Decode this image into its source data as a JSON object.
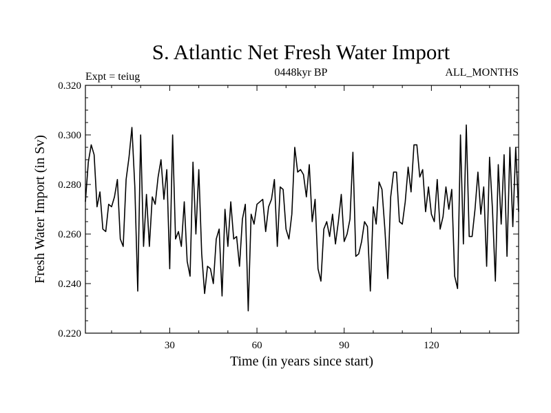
{
  "chart_data": {
    "type": "line",
    "title": "S. Atlantic Net Fresh Water Import",
    "subtitle_left": "Expt = teiug",
    "subtitle_center": "0448kyr BP",
    "subtitle_right": "ALL_MONTHS",
    "xlabel": "Time (in years since start)",
    "ylabel": "Fresh Water Import (in Sv)",
    "xlim": [
      1,
      150
    ],
    "ylim": [
      0.22,
      0.32
    ],
    "xticks": [
      30,
      60,
      90,
      120
    ],
    "xtick_labels": [
      "30",
      "60",
      "90",
      "120"
    ],
    "yticks": [
      0.22,
      0.24,
      0.26,
      0.28,
      0.3,
      0.32
    ],
    "ytick_labels": [
      "0.220",
      "0.240",
      "0.260",
      "0.280",
      "0.300",
      "0.320"
    ],
    "grid": false,
    "series": [
      {
        "name": "Fresh Water Import",
        "color": "#000000",
        "x": [
          1,
          2,
          3,
          4,
          5,
          6,
          7,
          8,
          9,
          10,
          11,
          12,
          13,
          14,
          15,
          16,
          17,
          18,
          19,
          20,
          21,
          22,
          23,
          24,
          25,
          26,
          27,
          28,
          29,
          30,
          31,
          32,
          33,
          34,
          35,
          36,
          37,
          38,
          39,
          40,
          41,
          42,
          43,
          44,
          45,
          46,
          47,
          48,
          49,
          50,
          51,
          52,
          53,
          54,
          55,
          56,
          57,
          58,
          59,
          60,
          61,
          62,
          63,
          64,
          65,
          66,
          67,
          68,
          69,
          70,
          71,
          72,
          73,
          74,
          75,
          76,
          77,
          78,
          79,
          80,
          81,
          82,
          83,
          84,
          85,
          86,
          87,
          88,
          89,
          90,
          91,
          92,
          93,
          94,
          95,
          96,
          97,
          98,
          99,
          100,
          101,
          102,
          103,
          104,
          105,
          106,
          107,
          108,
          109,
          110,
          111,
          112,
          113,
          114,
          115,
          116,
          117,
          118,
          119,
          120,
          121,
          122,
          123,
          124,
          125,
          126,
          127,
          128,
          129,
          130,
          131,
          132,
          133,
          134,
          135,
          136,
          137,
          138,
          139,
          140,
          141,
          142,
          143,
          144,
          145,
          146,
          147,
          148,
          149,
          150
        ],
        "values": [
          0.273,
          0.289,
          0.296,
          0.292,
          0.271,
          0.277,
          0.262,
          0.261,
          0.272,
          0.271,
          0.275,
          0.282,
          0.258,
          0.255,
          0.282,
          0.291,
          0.303,
          0.279,
          0.237,
          0.3,
          0.255,
          0.276,
          0.255,
          0.275,
          0.272,
          0.283,
          0.29,
          0.274,
          0.286,
          0.246,
          0.3,
          0.258,
          0.261,
          0.255,
          0.273,
          0.249,
          0.243,
          0.289,
          0.26,
          0.286,
          0.252,
          0.236,
          0.247,
          0.246,
          0.24,
          0.258,
          0.262,
          0.235,
          0.27,
          0.255,
          0.273,
          0.258,
          0.259,
          0.247,
          0.266,
          0.272,
          0.229,
          0.268,
          0.264,
          0.272,
          0.273,
          0.274,
          0.261,
          0.271,
          0.274,
          0.282,
          0.255,
          0.279,
          0.278,
          0.262,
          0.258,
          0.268,
          0.295,
          0.285,
          0.286,
          0.284,
          0.275,
          0.288,
          0.265,
          0.274,
          0.246,
          0.241,
          0.262,
          0.265,
          0.259,
          0.268,
          0.256,
          0.265,
          0.276,
          0.257,
          0.26,
          0.266,
          0.293,
          0.251,
          0.252,
          0.257,
          0.265,
          0.263,
          0.237,
          0.271,
          0.264,
          0.281,
          0.278,
          0.262,
          0.242,
          0.275,
          0.285,
          0.285,
          0.265,
          0.264,
          0.273,
          0.287,
          0.277,
          0.296,
          0.296,
          0.283,
          0.286,
          0.269,
          0.279,
          0.268,
          0.265,
          0.282,
          0.262,
          0.267,
          0.279,
          0.27,
          0.278,
          0.243,
          0.238,
          0.3,
          0.256,
          0.304,
          0.259,
          0.259,
          0.27,
          0.285,
          0.268,
          0.279,
          0.247,
          0.291,
          0.27,
          0.241,
          0.288,
          0.264,
          0.292,
          0.251,
          0.295,
          0.263,
          0.295,
          0.269
        ]
      }
    ]
  }
}
